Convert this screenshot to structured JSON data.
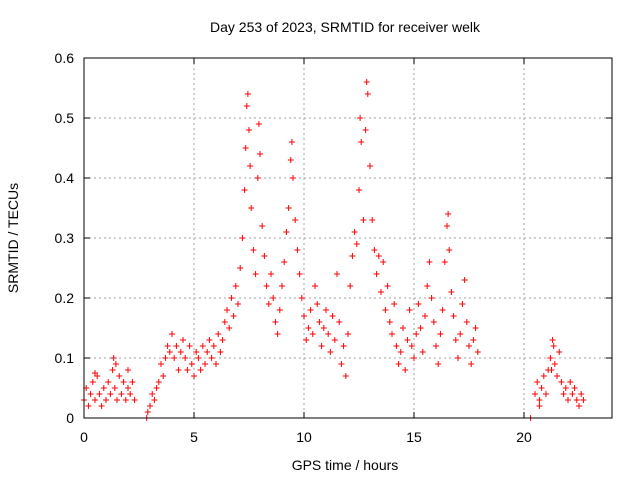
{
  "chart_data": {
    "type": "scatter",
    "title": "Day 253 of 2023, SRMTID for receiver welk",
    "xlabel": "GPS time / hours",
    "ylabel": "SRMTID / TECUs",
    "xlim": [
      0,
      24
    ],
    "ylim": [
      0,
      0.6
    ],
    "xticks": [
      0,
      5,
      10,
      15,
      20
    ],
    "yticks": [
      0,
      0.1,
      0.2,
      0.3,
      0.4,
      0.5,
      0.6
    ],
    "xtick_labels": [
      "0",
      "5",
      "10",
      "15",
      "20"
    ],
    "ytick_labels": [
      "0",
      "0.1",
      "0.2",
      "0.3",
      "0.4",
      "0.5",
      "0.6"
    ],
    "grid": true,
    "marker": "+",
    "series_color": "#ff0000",
    "series": [
      {
        "name": "SRMTID",
        "points": [
          [
            0.0,
            0.03
          ],
          [
            0.1,
            0.05
          ],
          [
            0.2,
            0.02
          ],
          [
            0.3,
            0.04
          ],
          [
            0.4,
            0.06
          ],
          [
            0.5,
            0.03
          ],
          [
            0.6,
            0.07
          ],
          [
            0.7,
            0.04
          ],
          [
            0.8,
            0.02
          ],
          [
            0.9,
            0.05
          ],
          [
            1.0,
            0.03
          ],
          [
            1.1,
            0.06
          ],
          [
            1.2,
            0.04
          ],
          [
            1.3,
            0.08
          ],
          [
            1.4,
            0.05
          ],
          [
            1.5,
            0.03
          ],
          [
            1.6,
            0.07
          ],
          [
            1.7,
            0.04
          ],
          [
            1.8,
            0.06
          ],
          [
            1.9,
            0.03
          ],
          [
            2.0,
            0.05
          ],
          [
            2.1,
            0.04
          ],
          [
            2.2,
            0.06
          ],
          [
            2.3,
            0.03
          ],
          [
            1.35,
            0.1
          ],
          [
            1.45,
            0.09
          ],
          [
            0.5,
            0.075
          ],
          [
            2.0,
            0.08
          ],
          [
            2.9,
            0.01
          ],
          [
            3.0,
            0.02
          ],
          [
            3.1,
            0.04
          ],
          [
            3.2,
            0.03
          ],
          [
            3.3,
            0.05
          ],
          [
            3.4,
            0.06
          ],
          [
            3.5,
            0.09
          ],
          [
            3.6,
            0.07
          ],
          [
            3.7,
            0.1
          ],
          [
            3.8,
            0.12
          ],
          [
            3.9,
            0.11
          ],
          [
            4.0,
            0.14
          ],
          [
            4.1,
            0.1
          ],
          [
            4.2,
            0.12
          ],
          [
            4.3,
            0.08
          ],
          [
            4.4,
            0.11
          ],
          [
            4.5,
            0.13
          ],
          [
            4.6,
            0.1
          ],
          [
            4.7,
            0.08
          ],
          [
            4.8,
            0.12
          ],
          [
            4.9,
            0.09
          ],
          [
            5.0,
            0.07
          ],
          [
            5.1,
            0.11
          ],
          [
            5.2,
            0.1
          ],
          [
            5.3,
            0.08
          ],
          [
            5.4,
            0.12
          ],
          [
            5.5,
            0.09
          ],
          [
            5.6,
            0.11
          ],
          [
            5.7,
            0.13
          ],
          [
            5.8,
            0.1
          ],
          [
            5.9,
            0.12
          ],
          [
            6.0,
            0.09
          ],
          [
            6.1,
            0.14
          ],
          [
            6.2,
            0.11
          ],
          [
            6.3,
            0.13
          ],
          [
            6.4,
            0.16
          ],
          [
            6.5,
            0.18
          ],
          [
            6.6,
            0.15
          ],
          [
            6.7,
            0.2
          ],
          [
            6.8,
            0.17
          ],
          [
            6.9,
            0.22
          ],
          [
            7.0,
            0.19
          ],
          [
            7.1,
            0.25
          ],
          [
            7.2,
            0.3
          ],
          [
            7.3,
            0.38
          ],
          [
            7.35,
            0.45
          ],
          [
            7.4,
            0.52
          ],
          [
            7.45,
            0.54
          ],
          [
            7.5,
            0.48
          ],
          [
            7.55,
            0.42
          ],
          [
            7.6,
            0.35
          ],
          [
            7.7,
            0.28
          ],
          [
            7.8,
            0.24
          ],
          [
            7.9,
            0.4
          ],
          [
            7.95,
            0.49
          ],
          [
            8.0,
            0.44
          ],
          [
            8.1,
            0.32
          ],
          [
            8.2,
            0.27
          ],
          [
            8.3,
            0.22
          ],
          [
            8.4,
            0.19
          ],
          [
            8.5,
            0.24
          ],
          [
            8.6,
            0.2
          ],
          [
            8.7,
            0.16
          ],
          [
            8.8,
            0.14
          ],
          [
            8.9,
            0.18
          ],
          [
            9.0,
            0.22
          ],
          [
            9.1,
            0.26
          ],
          [
            9.2,
            0.31
          ],
          [
            9.3,
            0.35
          ],
          [
            9.4,
            0.43
          ],
          [
            9.45,
            0.46
          ],
          [
            9.5,
            0.4
          ],
          [
            9.6,
            0.33
          ],
          [
            9.7,
            0.28
          ],
          [
            9.8,
            0.24
          ],
          [
            9.9,
            0.2
          ],
          [
            10.0,
            0.17
          ],
          [
            10.1,
            0.13
          ],
          [
            10.2,
            0.15
          ],
          [
            10.3,
            0.18
          ],
          [
            10.4,
            0.14
          ],
          [
            10.5,
            0.22
          ],
          [
            10.6,
            0.19
          ],
          [
            10.7,
            0.16
          ],
          [
            10.8,
            0.12
          ],
          [
            10.9,
            0.15
          ],
          [
            11.0,
            0.18
          ],
          [
            11.1,
            0.14
          ],
          [
            11.2,
            0.11
          ],
          [
            11.3,
            0.17
          ],
          [
            11.4,
            0.13
          ],
          [
            11.5,
            0.24
          ],
          [
            11.6,
            0.16
          ],
          [
            11.7,
            0.09
          ],
          [
            11.8,
            0.12
          ],
          [
            11.9,
            0.07
          ],
          [
            12.0,
            0.14
          ],
          [
            12.1,
            0.22
          ],
          [
            12.2,
            0.27
          ],
          [
            12.3,
            0.31
          ],
          [
            12.4,
            0.29
          ],
          [
            12.5,
            0.38
          ],
          [
            12.55,
            0.5
          ],
          [
            12.6,
            0.46
          ],
          [
            12.7,
            0.33
          ],
          [
            12.8,
            0.48
          ],
          [
            12.85,
            0.56
          ],
          [
            12.9,
            0.54
          ],
          [
            13.0,
            0.42
          ],
          [
            13.1,
            0.33
          ],
          [
            13.2,
            0.28
          ],
          [
            13.3,
            0.24
          ],
          [
            13.4,
            0.27
          ],
          [
            13.5,
            0.21
          ],
          [
            13.6,
            0.26
          ],
          [
            13.7,
            0.18
          ],
          [
            13.8,
            0.22
          ],
          [
            13.9,
            0.16
          ],
          [
            14.0,
            0.14
          ],
          [
            14.1,
            0.19
          ],
          [
            14.2,
            0.12
          ],
          [
            14.3,
            0.09
          ],
          [
            14.4,
            0.11
          ],
          [
            14.5,
            0.15
          ],
          [
            14.6,
            0.08
          ],
          [
            14.7,
            0.13
          ],
          [
            14.8,
            0.18
          ],
          [
            14.9,
            0.12
          ],
          [
            15.0,
            0.1
          ],
          [
            15.1,
            0.14
          ],
          [
            15.2,
            0.19
          ],
          [
            15.3,
            0.15
          ],
          [
            15.4,
            0.11
          ],
          [
            15.5,
            0.17
          ],
          [
            15.6,
            0.22
          ],
          [
            15.7,
            0.26
          ],
          [
            15.8,
            0.2
          ],
          [
            15.9,
            0.16
          ],
          [
            16.0,
            0.12
          ],
          [
            16.1,
            0.09
          ],
          [
            16.2,
            0.14
          ],
          [
            16.3,
            0.18
          ],
          [
            16.4,
            0.26
          ],
          [
            16.5,
            0.32
          ],
          [
            16.55,
            0.34
          ],
          [
            16.6,
            0.28
          ],
          [
            16.7,
            0.21
          ],
          [
            16.8,
            0.17
          ],
          [
            16.9,
            0.13
          ],
          [
            17.0,
            0.1
          ],
          [
            17.1,
            0.14
          ],
          [
            17.2,
            0.19
          ],
          [
            17.3,
            0.23
          ],
          [
            17.4,
            0.16
          ],
          [
            17.5,
            0.12
          ],
          [
            17.6,
            0.09
          ],
          [
            17.7,
            0.13
          ],
          [
            17.8,
            0.15
          ],
          [
            17.9,
            0.11
          ],
          [
            20.3,
            0.0
          ],
          [
            2.85,
            0.0
          ],
          [
            20.5,
            0.04
          ],
          [
            20.6,
            0.06
          ],
          [
            20.7,
            0.03
          ],
          [
            20.8,
            0.05
          ],
          [
            20.9,
            0.07
          ],
          [
            21.0,
            0.04
          ],
          [
            21.1,
            0.08
          ],
          [
            21.2,
            0.1
          ],
          [
            21.3,
            0.13
          ],
          [
            21.4,
            0.09
          ],
          [
            21.5,
            0.07
          ],
          [
            21.6,
            0.11
          ],
          [
            21.7,
            0.06
          ],
          [
            21.8,
            0.04
          ],
          [
            21.9,
            0.05
          ],
          [
            22.0,
            0.03
          ],
          [
            22.1,
            0.06
          ],
          [
            22.2,
            0.04
          ],
          [
            22.3,
            0.05
          ],
          [
            22.4,
            0.03
          ],
          [
            22.5,
            0.02
          ],
          [
            22.6,
            0.04
          ],
          [
            22.7,
            0.03
          ],
          [
            21.35,
            0.12
          ],
          [
            21.25,
            0.08
          ],
          [
            20.7,
            0.02
          ]
        ]
      }
    ]
  }
}
